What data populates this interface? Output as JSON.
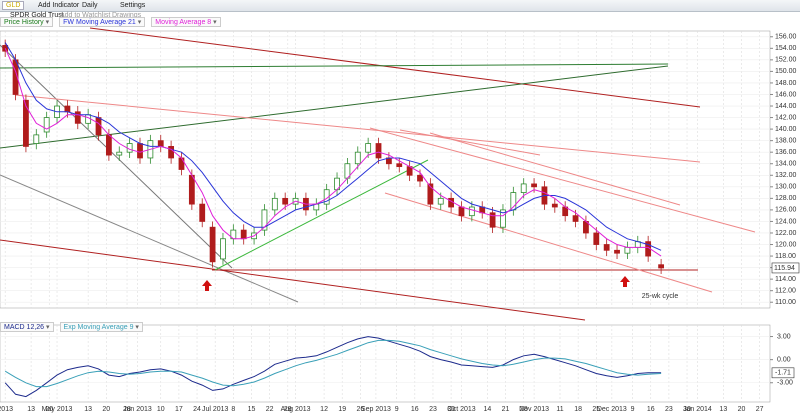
{
  "toolbar": {
    "symbol": "GLD",
    "add_indicator": "Add Indicator",
    "period": "Daily",
    "settings": "Settings",
    "name": "SPDR Gold Trust",
    "watchlist": "Add to Watchlist",
    "drawings": "Drawings"
  },
  "chart_data": [
    {
      "type": "candlestick",
      "name": "Price History",
      "up_color": "#2e8b2e",
      "down_color": "#b01c1c",
      "x": [
        10,
        14,
        18,
        22,
        26,
        30,
        34,
        38,
        42,
        46,
        50,
        54,
        58,
        62,
        66,
        70,
        74,
        78,
        82,
        86,
        90,
        94,
        98,
        102,
        106,
        110,
        114,
        118,
        122,
        126,
        130,
        134,
        138,
        142,
        146,
        150,
        154,
        158,
        162,
        166,
        170,
        174,
        178,
        182,
        186,
        190,
        194,
        198,
        202,
        206,
        210,
        214,
        218,
        222,
        226,
        230,
        234,
        238,
        242,
        246,
        250,
        254,
        258,
        263
      ],
      "open": [
        154.5,
        152,
        145,
        137.5,
        139.5,
        142,
        144,
        143,
        141,
        142,
        139,
        135.5,
        136,
        137.5,
        135,
        138,
        137,
        135,
        132,
        127,
        123,
        117.5,
        121,
        122.5,
        121,
        122.5,
        126,
        128,
        127,
        128,
        126,
        127,
        129.5,
        131.5,
        134,
        136,
        137.5,
        135,
        134,
        133.5,
        132,
        130.5,
        127,
        128,
        126.5,
        125,
        126.5,
        125.5,
        123,
        126,
        129,
        130.5,
        130,
        127,
        126.5,
        125,
        124,
        122,
        120,
        119,
        118.5,
        119.5,
        120.5,
        116.5
      ],
      "high": [
        155.5,
        153,
        146,
        140,
        143,
        145,
        145,
        144,
        143.5,
        143,
        140,
        137,
        138.5,
        138.5,
        139,
        139,
        138,
        136,
        133,
        128,
        124,
        122,
        123.5,
        123.5,
        123,
        127,
        129,
        129,
        129,
        129,
        128,
        130.5,
        132.5,
        135,
        137,
        138.5,
        138.5,
        136,
        135,
        134.5,
        133,
        131.5,
        129,
        129,
        127.5,
        127.5,
        127.5,
        126.5,
        127,
        130,
        131.5,
        131.5,
        131,
        128,
        127.5,
        126,
        125,
        123,
        121,
        120,
        120.5,
        121.5,
        121.5,
        117.5
      ],
      "low": [
        152.5,
        145,
        136,
        136.5,
        138.5,
        141,
        142,
        140,
        140,
        138,
        134.5,
        134.5,
        135,
        134,
        134,
        136,
        134,
        132,
        126,
        123,
        116,
        116.5,
        120,
        120,
        120,
        121.5,
        125,
        126,
        126,
        125,
        125,
        126,
        128.5,
        130.5,
        133,
        135,
        134,
        133,
        132.5,
        131,
        130,
        126,
        126,
        125.5,
        124,
        124,
        124.5,
        122,
        122,
        125,
        128,
        129,
        126,
        125.5,
        124,
        123,
        121,
        119,
        118,
        117.5,
        117.5,
        118.5,
        117,
        114.9
      ],
      "close": [
        153.5,
        146,
        137,
        139,
        142,
        144,
        143,
        141,
        142.5,
        139,
        135.5,
        136,
        137.5,
        135,
        138,
        137,
        135,
        133,
        127,
        124,
        117,
        121,
        122.5,
        121,
        122,
        126,
        128,
        127,
        128,
        126,
        127,
        129.5,
        131.5,
        134,
        136,
        137.5,
        135,
        134,
        133.5,
        132,
        131,
        127,
        128,
        126.5,
        125,
        126.5,
        125.5,
        123,
        126,
        129,
        130.5,
        130,
        127,
        126.5,
        125,
        124,
        122,
        120,
        119,
        118.5,
        119.5,
        120.5,
        118,
        115.94
      ],
      "series": [
        {
          "name": "FW Moving Average 21",
          "color": "#2a35d8",
          "values": [
            155,
            152,
            148,
            145,
            143.5,
            143,
            143,
            142.5,
            142.5,
            142,
            141,
            139.5,
            138.5,
            137.5,
            137,
            137,
            136.5,
            136,
            134.5,
            132.5,
            130,
            127.5,
            125.5,
            124,
            123,
            123,
            124,
            125,
            126,
            126.5,
            127,
            127.5,
            128.5,
            130,
            131.5,
            133,
            134.5,
            135,
            135,
            134.5,
            134,
            132.5,
            131,
            129.5,
            128,
            127,
            126.5,
            126,
            125.5,
            126,
            127,
            128,
            128.5,
            128.5,
            128,
            127,
            126,
            124.5,
            123,
            122,
            121,
            120.5,
            120,
            119
          ]
        },
        {
          "name": "Moving Average 8",
          "color": "#e020d8",
          "values": [
            154,
            150,
            144,
            141,
            140,
            141,
            142.5,
            142.5,
            142,
            141,
            139,
            137.5,
            136.5,
            136,
            136.5,
            137,
            136.5,
            135,
            132,
            129,
            125,
            122.5,
            121,
            121,
            121.5,
            123,
            125,
            126.5,
            127.5,
            127,
            127,
            128,
            129.5,
            131.5,
            133.5,
            135.5,
            136,
            135.5,
            134.5,
            133.5,
            132.5,
            130,
            128.5,
            127.5,
            126.5,
            126,
            125.5,
            125,
            125,
            126.5,
            128.5,
            129.5,
            129,
            128,
            126.5,
            125.5,
            124,
            122.5,
            121,
            120,
            119.5,
            119.5,
            119.5,
            118
          ]
        }
      ],
      "last_value": 115.94,
      "annotation": "25-wk cycle",
      "grid": true,
      "xlim": [
        8,
        305
      ],
      "xticks": [
        {
          "value": 10,
          "label": "2013"
        },
        {
          "value": 20,
          "label": "13"
        },
        {
          "value": 27,
          "label": "20"
        },
        {
          "value": 30,
          "label": "May 2013"
        },
        {
          "value": 42,
          "label": "13"
        },
        {
          "value": 49,
          "label": "20"
        },
        {
          "value": 57,
          "label": "28"
        },
        {
          "value": 61,
          "label": "Jun 2013"
        },
        {
          "value": 70,
          "label": "10"
        },
        {
          "value": 77,
          "label": "17"
        },
        {
          "value": 84,
          "label": "24"
        },
        {
          "value": 91,
          "label": "Jul 2013"
        },
        {
          "value": 98,
          "label": "8"
        },
        {
          "value": 105,
          "label": "15"
        },
        {
          "value": 112,
          "label": "22"
        },
        {
          "value": 119,
          "label": "29"
        },
        {
          "value": 122,
          "label": "Aug 2013"
        },
        {
          "value": 133,
          "label": "12"
        },
        {
          "value": 140,
          "label": "19"
        },
        {
          "value": 147,
          "label": "26"
        },
        {
          "value": 153,
          "label": "Sep 2013"
        },
        {
          "value": 161,
          "label": "9"
        },
        {
          "value": 168,
          "label": "16"
        },
        {
          "value": 175,
          "label": "23"
        },
        {
          "value": 182,
          "label": "30"
        },
        {
          "value": 186,
          "label": "Oct 2013"
        },
        {
          "value": 196,
          "label": "14"
        },
        {
          "value": 203,
          "label": "21"
        },
        {
          "value": 210,
          "label": "28"
        },
        {
          "value": 214,
          "label": "Nov 2013"
        },
        {
          "value": 224,
          "label": "11"
        },
        {
          "value": 231,
          "label": "18"
        },
        {
          "value": 238,
          "label": "25"
        },
        {
          "value": 244,
          "label": "Dec 2013"
        },
        {
          "value": 252,
          "label": "9"
        },
        {
          "value": 259,
          "label": "16"
        },
        {
          "value": 266,
          "label": "23"
        },
        {
          "value": 273,
          "label": "30"
        },
        {
          "value": 277,
          "label": "Jan 2014"
        },
        {
          "value": 287,
          "label": "13"
        },
        {
          "value": 294,
          "label": "20"
        },
        {
          "value": 301,
          "label": "27"
        }
      ],
      "ylim": [
        109,
        157
      ],
      "yticks": [
        {
          "value": 110,
          "label": "110.00"
        },
        {
          "value": 112,
          "label": "112.00"
        },
        {
          "value": 114,
          "label": "114.00"
        },
        {
          "value": 116,
          "label": "116.00"
        },
        {
          "value": 118,
          "label": "118.00"
        },
        {
          "value": 120,
          "label": "120.00"
        },
        {
          "value": 122,
          "label": "122.00"
        },
        {
          "value": 124,
          "label": "124.00"
        },
        {
          "value": 126,
          "label": "126.00"
        },
        {
          "value": 128,
          "label": "128.00"
        },
        {
          "value": 130,
          "label": "130.00"
        },
        {
          "value": 132,
          "label": "132.00"
        },
        {
          "value": 134,
          "label": "134.00"
        },
        {
          "value": 136,
          "label": "136.00"
        },
        {
          "value": 138,
          "label": "138.00"
        },
        {
          "value": 140,
          "label": "140.00"
        },
        {
          "value": 142,
          "label": "142.00"
        },
        {
          "value": 144,
          "label": "144.00"
        },
        {
          "value": 146,
          "label": "146.00"
        },
        {
          "value": 148,
          "label": "148.00"
        },
        {
          "value": 150,
          "label": "150.00"
        },
        {
          "value": 152,
          "label": "152.00"
        },
        {
          "value": 154,
          "label": "154.00"
        },
        {
          "value": 156,
          "label": "156.00"
        }
      ]
    },
    {
      "type": "line",
      "grid": true,
      "x": [
        10,
        14,
        18,
        22,
        26,
        30,
        34,
        38,
        42,
        46,
        50,
        54,
        58,
        62,
        66,
        70,
        74,
        78,
        82,
        86,
        90,
        94,
        98,
        102,
        106,
        110,
        114,
        118,
        122,
        126,
        130,
        134,
        138,
        142,
        146,
        150,
        154,
        158,
        162,
        166,
        170,
        174,
        178,
        182,
        186,
        190,
        194,
        198,
        202,
        206,
        210,
        214,
        218,
        222,
        226,
        230,
        234,
        238,
        242,
        246,
        250,
        254,
        258,
        263
      ],
      "series": [
        {
          "name": "MACD 12,26",
          "color": "#1c2a8c",
          "values": [
            -3,
            -4.5,
            -4.8,
            -4,
            -3,
            -2,
            -1.3,
            -1,
            -0.8,
            -1.2,
            -2,
            -2.2,
            -1.8,
            -1.6,
            -1.3,
            -1.2,
            -1.5,
            -2,
            -2.8,
            -3.3,
            -4,
            -3.8,
            -3.2,
            -2.7,
            -2.2,
            -1.5,
            -0.6,
            -0.2,
            0.2,
            0.3,
            0.5,
            1,
            1.6,
            2.2,
            2.7,
            3,
            2.8,
            2.4,
            2,
            1.6,
            1.1,
            0.4,
            0,
            -0.3,
            -0.7,
            -0.8,
            -0.9,
            -1,
            -0.7,
            0,
            0.5,
            0.7,
            0.4,
            0,
            -0.4,
            -0.8,
            -1.3,
            -1.8,
            -2.1,
            -2.3,
            -2.1,
            -1.8,
            -1.7,
            -1.71
          ]
        },
        {
          "name": "Exp Moving Average 9",
          "color": "#3aa0b8",
          "values": [
            -1.5,
            -2.3,
            -3,
            -3.5,
            -3.5,
            -3.1,
            -2.6,
            -2.1,
            -1.7,
            -1.5,
            -1.6,
            -1.8,
            -1.9,
            -1.8,
            -1.6,
            -1.5,
            -1.5,
            -1.6,
            -2,
            -2.4,
            -2.9,
            -3.3,
            -3.4,
            -3.2,
            -2.9,
            -2.4,
            -1.8,
            -1.3,
            -0.8,
            -0.4,
            -0.1,
            0.3,
            0.7,
            1.2,
            1.7,
            2.2,
            2.5,
            2.5,
            2.4,
            2.1,
            1.8,
            1.3,
            0.9,
            0.5,
            0.1,
            -0.2,
            -0.5,
            -0.7,
            -0.8,
            -0.6,
            -0.3,
            0,
            0.2,
            0.2,
            0.1,
            -0.2,
            -0.5,
            -0.9,
            -1.3,
            -1.7,
            -1.9,
            -2,
            -1.9,
            -1.8
          ]
        }
      ],
      "last_value": -1.71,
      "xlim": [
        8,
        305
      ],
      "ylim": [
        -5.5,
        4.5
      ],
      "yticks": [
        {
          "value": 3,
          "label": "3.00"
        },
        {
          "value": 0,
          "label": "0.00"
        },
        {
          "value": -3,
          "label": "-3.00"
        }
      ]
    }
  ]
}
